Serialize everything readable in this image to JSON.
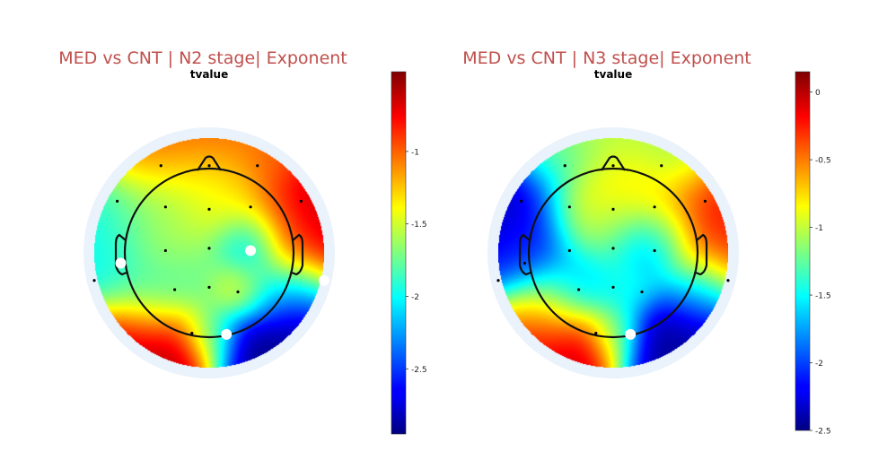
{
  "chart_data": [
    {
      "type": "heatmap",
      "title": "MED vs CNT | N2 stage| Exponent",
      "subtitle": "tvalue",
      "colormap": "jet",
      "colorbar": {
        "range": [
          -2.95,
          -0.45
        ],
        "ticks": [
          -1,
          -1.5,
          -2,
          -2.5
        ]
      },
      "electrodes": [
        {
          "x": -0.42,
          "y": 0.76
        },
        {
          "x": 0.0,
          "y": 0.76
        },
        {
          "x": 0.42,
          "y": 0.76
        },
        {
          "x": -0.8,
          "y": 0.45
        },
        {
          "x": -0.38,
          "y": 0.4
        },
        {
          "x": 0.0,
          "y": 0.38
        },
        {
          "x": 0.36,
          "y": 0.4
        },
        {
          "x": 0.8,
          "y": 0.45
        },
        {
          "x": -0.77,
          "y": -0.09
        },
        {
          "x": -0.38,
          "y": 0.02
        },
        {
          "x": 0.0,
          "y": 0.04
        },
        {
          "x": 0.36,
          "y": 0.02
        },
        {
          "x": 1.0,
          "y": -0.24
        },
        {
          "x": -1.0,
          "y": -0.24
        },
        {
          "x": -0.3,
          "y": -0.32
        },
        {
          "x": 0.0,
          "y": -0.3
        },
        {
          "x": 0.25,
          "y": -0.34
        },
        {
          "x": -0.15,
          "y": -0.7
        },
        {
          "x": 0.15,
          "y": -0.71
        }
      ],
      "significant": [
        {
          "x": -0.77,
          "y": -0.09
        },
        {
          "x": 0.36,
          "y": 0.02
        },
        {
          "x": 0.15,
          "y": -0.71
        },
        {
          "x": 1.0,
          "y": -0.24
        }
      ],
      "field": [
        {
          "x": 0.0,
          "y": 1.05,
          "v": -1.0,
          "w": 0.25
        },
        {
          "x": -0.45,
          "y": 0.9,
          "v": -0.95,
          "w": 0.25
        },
        {
          "x": 0.5,
          "y": 0.85,
          "v": -1.05,
          "w": 0.25
        },
        {
          "x": 0.0,
          "y": 0.6,
          "v": -1.35,
          "w": 0.25
        },
        {
          "x": -0.45,
          "y": 0.45,
          "v": -1.7,
          "w": 0.3
        },
        {
          "x": 0.2,
          "y": 0.3,
          "v": -1.45,
          "w": 0.25
        },
        {
          "x": 0.85,
          "y": 0.35,
          "v": -0.55,
          "w": 0.3
        },
        {
          "x": 0.95,
          "y": 0.0,
          "v": -0.6,
          "w": 0.25
        },
        {
          "x": 0.65,
          "y": 0.1,
          "v": -1.2,
          "w": 0.25
        },
        {
          "x": -0.95,
          "y": 0.2,
          "v": -1.95,
          "w": 0.25
        },
        {
          "x": -0.85,
          "y": -0.1,
          "v": -2.05,
          "w": 0.25
        },
        {
          "x": -0.45,
          "y": 0.05,
          "v": -1.5,
          "w": 0.25
        },
        {
          "x": 0.35,
          "y": 0.05,
          "v": -2.65,
          "w": 0.18
        },
        {
          "x": 0.0,
          "y": -0.25,
          "v": -1.75,
          "w": 0.25
        },
        {
          "x": -0.45,
          "y": -0.35,
          "v": -2.0,
          "w": 0.25
        },
        {
          "x": 0.25,
          "y": -0.3,
          "v": -1.1,
          "w": 0.15
        },
        {
          "x": 0.45,
          "y": -0.3,
          "v": -2.0,
          "w": 0.2
        },
        {
          "x": -0.6,
          "y": -0.75,
          "v": -0.55,
          "w": 0.28
        },
        {
          "x": -0.2,
          "y": -0.85,
          "v": -0.55,
          "w": 0.22
        },
        {
          "x": 0.0,
          "y": -0.7,
          "v": -1.9,
          "w": 0.15
        },
        {
          "x": 0.3,
          "y": -0.85,
          "v": -2.95,
          "w": 0.22
        },
        {
          "x": 0.75,
          "y": -0.6,
          "v": -2.9,
          "w": 0.25
        },
        {
          "x": 0.8,
          "y": -0.3,
          "v": -2.4,
          "w": 0.2
        }
      ]
    },
    {
      "type": "heatmap",
      "title": "MED vs CNT | N3 stage| Exponent",
      "subtitle": "tvalue",
      "colormap": "jet",
      "colorbar": {
        "range": [
          -2.5,
          0.15
        ],
        "ticks": [
          0,
          -0.5,
          -1,
          -1.5,
          -2,
          -2.5
        ]
      },
      "electrodes": [
        {
          "x": -0.42,
          "y": 0.76
        },
        {
          "x": 0.0,
          "y": 0.76
        },
        {
          "x": 0.42,
          "y": 0.76
        },
        {
          "x": -0.8,
          "y": 0.45
        },
        {
          "x": -0.38,
          "y": 0.4
        },
        {
          "x": 0.0,
          "y": 0.38
        },
        {
          "x": 0.36,
          "y": 0.4
        },
        {
          "x": 0.8,
          "y": 0.45
        },
        {
          "x": -0.77,
          "y": -0.09
        },
        {
          "x": -0.38,
          "y": 0.02
        },
        {
          "x": 0.0,
          "y": 0.04
        },
        {
          "x": 0.36,
          "y": 0.02
        },
        {
          "x": 1.0,
          "y": -0.24
        },
        {
          "x": -1.0,
          "y": -0.24
        },
        {
          "x": -0.3,
          "y": -0.32
        },
        {
          "x": 0.0,
          "y": -0.3
        },
        {
          "x": 0.25,
          "y": -0.34
        },
        {
          "x": -0.15,
          "y": -0.7
        },
        {
          "x": 0.15,
          "y": -0.71
        }
      ],
      "significant": [
        {
          "x": 0.15,
          "y": -0.71
        }
      ],
      "field": [
        {
          "x": 0.0,
          "y": 1.05,
          "v": -1.0,
          "w": 0.25
        },
        {
          "x": -0.5,
          "y": 0.9,
          "v": -1.2,
          "w": 0.25
        },
        {
          "x": 0.55,
          "y": 0.85,
          "v": -1.1,
          "w": 0.25
        },
        {
          "x": -0.85,
          "y": 0.35,
          "v": -2.4,
          "w": 0.3
        },
        {
          "x": -0.75,
          "y": 0.05,
          "v": -2.0,
          "w": 0.25
        },
        {
          "x": -0.25,
          "y": 0.35,
          "v": -0.7,
          "w": 0.22
        },
        {
          "x": 0.15,
          "y": 0.55,
          "v": -0.75,
          "w": 0.22
        },
        {
          "x": 0.45,
          "y": 0.2,
          "v": -0.9,
          "w": 0.2
        },
        {
          "x": 0.35,
          "y": 0.05,
          "v": -2.1,
          "w": 0.18
        },
        {
          "x": 0.85,
          "y": 0.35,
          "v": -0.2,
          "w": 0.3
        },
        {
          "x": 0.9,
          "y": -0.05,
          "v": -0.35,
          "w": 0.25
        },
        {
          "x": 0.0,
          "y": 0.15,
          "v": -1.3,
          "w": 0.25
        },
        {
          "x": -0.3,
          "y": -0.3,
          "v": -1.8,
          "w": 0.2
        },
        {
          "x": 0.1,
          "y": -0.3,
          "v": -1.45,
          "w": 0.2
        },
        {
          "x": -0.55,
          "y": -0.5,
          "v": -0.9,
          "w": 0.25
        },
        {
          "x": -0.55,
          "y": -0.8,
          "v": 0.05,
          "w": 0.25
        },
        {
          "x": -0.15,
          "y": -0.85,
          "v": 0.0,
          "w": 0.2
        },
        {
          "x": 0.0,
          "y": -0.7,
          "v": -1.3,
          "w": 0.15
        },
        {
          "x": 0.3,
          "y": -0.85,
          "v": -2.45,
          "w": 0.22
        },
        {
          "x": 0.7,
          "y": -0.6,
          "v": -2.4,
          "w": 0.25
        },
        {
          "x": 0.75,
          "y": -0.3,
          "v": -1.7,
          "w": 0.2
        }
      ]
    }
  ]
}
